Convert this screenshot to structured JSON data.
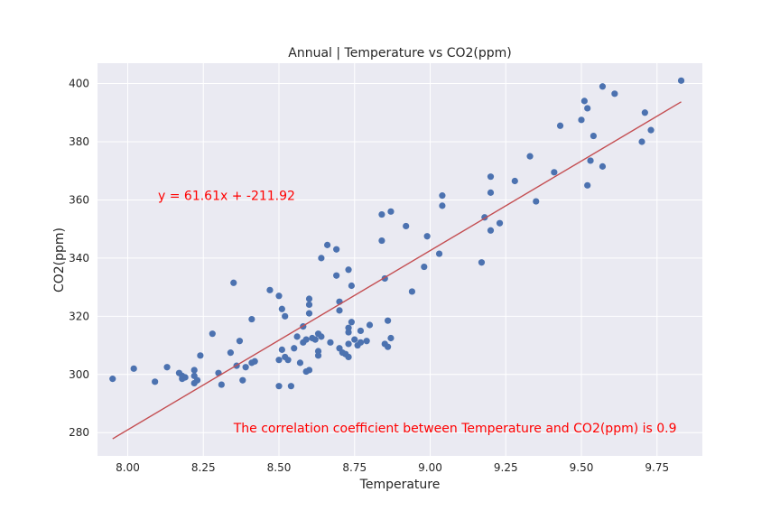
{
  "chart_data": {
    "type": "scatter",
    "title": "Annual | Temperature vs CO2(ppm)",
    "xlabel": "Temperature",
    "ylabel": "CO2(ppm)",
    "xlim": [
      7.9,
      9.9
    ],
    "ylim": [
      272,
      407
    ],
    "xticks": [
      8.0,
      8.25,
      8.5,
      8.75,
      9.0,
      9.25,
      9.5,
      9.75
    ],
    "xtick_labels": [
      "8.00",
      "8.25",
      "8.50",
      "8.75",
      "9.00",
      "9.25",
      "9.50",
      "9.75"
    ],
    "yticks": [
      280,
      300,
      320,
      340,
      360,
      380,
      400
    ],
    "ytick_labels": [
      "280",
      "300",
      "320",
      "340",
      "360",
      "380",
      "400"
    ],
    "grid": true,
    "point_color": "#4c72b0",
    "line_color": "#c44e52",
    "annotation_color": "#ff0000",
    "background_color": "#eaeaf2",
    "regression": {
      "slope": 61.61,
      "intercept": -211.92,
      "x_range": [
        7.95,
        9.83
      ],
      "equation_text": "y = 61.61x + -211.92",
      "equation_pos": [
        8.1,
        360
      ]
    },
    "correlation_text": "The correlation coefficient between Temperature and CO2(ppm) is 0.9",
    "correlation_pos": [
      8.35,
      280
    ],
    "points": [
      {
        "x": 7.95,
        "y": 298.5
      },
      {
        "x": 8.02,
        "y": 302
      },
      {
        "x": 8.09,
        "y": 297.5
      },
      {
        "x": 8.13,
        "y": 302.5
      },
      {
        "x": 8.17,
        "y": 300.5
      },
      {
        "x": 8.18,
        "y": 299.5
      },
      {
        "x": 8.19,
        "y": 299
      },
      {
        "x": 8.18,
        "y": 298.5
      },
      {
        "x": 8.22,
        "y": 301.5
      },
      {
        "x": 8.22,
        "y": 299.5
      },
      {
        "x": 8.22,
        "y": 297
      },
      {
        "x": 8.23,
        "y": 298
      },
      {
        "x": 8.24,
        "y": 306.5
      },
      {
        "x": 8.28,
        "y": 314
      },
      {
        "x": 8.3,
        "y": 300.5
      },
      {
        "x": 8.31,
        "y": 296.5
      },
      {
        "x": 8.34,
        "y": 307.5
      },
      {
        "x": 8.35,
        "y": 331.5
      },
      {
        "x": 8.36,
        "y": 303
      },
      {
        "x": 8.37,
        "y": 311.5
      },
      {
        "x": 8.38,
        "y": 298
      },
      {
        "x": 8.39,
        "y": 302.5
      },
      {
        "x": 8.41,
        "y": 304
      },
      {
        "x": 8.42,
        "y": 304.5
      },
      {
        "x": 8.41,
        "y": 319
      },
      {
        "x": 8.47,
        "y": 329
      },
      {
        "x": 8.5,
        "y": 327
      },
      {
        "x": 8.5,
        "y": 305
      },
      {
        "x": 8.5,
        "y": 296
      },
      {
        "x": 8.51,
        "y": 322.5
      },
      {
        "x": 8.51,
        "y": 308.5
      },
      {
        "x": 8.52,
        "y": 306
      },
      {
        "x": 8.52,
        "y": 320
      },
      {
        "x": 8.53,
        "y": 305
      },
      {
        "x": 8.54,
        "y": 296
      },
      {
        "x": 8.55,
        "y": 309
      },
      {
        "x": 8.56,
        "y": 313
      },
      {
        "x": 8.57,
        "y": 304
      },
      {
        "x": 8.58,
        "y": 311
      },
      {
        "x": 8.58,
        "y": 316.5
      },
      {
        "x": 8.59,
        "y": 312
      },
      {
        "x": 8.59,
        "y": 301
      },
      {
        "x": 8.6,
        "y": 301.5
      },
      {
        "x": 8.6,
        "y": 321
      },
      {
        "x": 8.6,
        "y": 324
      },
      {
        "x": 8.6,
        "y": 326
      },
      {
        "x": 8.61,
        "y": 312.5
      },
      {
        "x": 8.62,
        "y": 312
      },
      {
        "x": 8.63,
        "y": 314
      },
      {
        "x": 8.63,
        "y": 308
      },
      {
        "x": 8.63,
        "y": 306.5
      },
      {
        "x": 8.64,
        "y": 313
      },
      {
        "x": 8.64,
        "y": 340
      },
      {
        "x": 8.66,
        "y": 344.5
      },
      {
        "x": 8.67,
        "y": 311
      },
      {
        "x": 8.69,
        "y": 343
      },
      {
        "x": 8.69,
        "y": 334
      },
      {
        "x": 8.7,
        "y": 325
      },
      {
        "x": 8.7,
        "y": 322
      },
      {
        "x": 8.7,
        "y": 309
      },
      {
        "x": 8.71,
        "y": 307.5
      },
      {
        "x": 8.72,
        "y": 307
      },
      {
        "x": 8.73,
        "y": 306
      },
      {
        "x": 8.73,
        "y": 310.5
      },
      {
        "x": 8.73,
        "y": 314.5
      },
      {
        "x": 8.73,
        "y": 316
      },
      {
        "x": 8.73,
        "y": 336
      },
      {
        "x": 8.74,
        "y": 330.5
      },
      {
        "x": 8.74,
        "y": 318
      },
      {
        "x": 8.75,
        "y": 312
      },
      {
        "x": 8.76,
        "y": 310
      },
      {
        "x": 8.77,
        "y": 311
      },
      {
        "x": 8.77,
        "y": 315
      },
      {
        "x": 8.79,
        "y": 311.5
      },
      {
        "x": 8.8,
        "y": 317
      },
      {
        "x": 8.84,
        "y": 346
      },
      {
        "x": 8.84,
        "y": 355
      },
      {
        "x": 8.85,
        "y": 310.5
      },
      {
        "x": 8.85,
        "y": 333
      },
      {
        "x": 8.86,
        "y": 318.5
      },
      {
        "x": 8.86,
        "y": 309.5
      },
      {
        "x": 8.87,
        "y": 356
      },
      {
        "x": 8.87,
        "y": 312.5
      },
      {
        "x": 8.92,
        "y": 351
      },
      {
        "x": 8.94,
        "y": 328.5
      },
      {
        "x": 8.98,
        "y": 337
      },
      {
        "x": 8.99,
        "y": 347.5
      },
      {
        "x": 9.03,
        "y": 341.5
      },
      {
        "x": 9.04,
        "y": 358
      },
      {
        "x": 9.04,
        "y": 361.5
      },
      {
        "x": 9.17,
        "y": 338.5
      },
      {
        "x": 9.18,
        "y": 354
      },
      {
        "x": 9.2,
        "y": 349.5
      },
      {
        "x": 9.2,
        "y": 362.5
      },
      {
        "x": 9.2,
        "y": 368
      },
      {
        "x": 9.23,
        "y": 352
      },
      {
        "x": 9.28,
        "y": 366.5
      },
      {
        "x": 9.33,
        "y": 375
      },
      {
        "x": 9.35,
        "y": 359.5
      },
      {
        "x": 9.41,
        "y": 369.5
      },
      {
        "x": 9.43,
        "y": 385.5
      },
      {
        "x": 9.5,
        "y": 387.5
      },
      {
        "x": 9.51,
        "y": 394
      },
      {
        "x": 9.52,
        "y": 391.5
      },
      {
        "x": 9.52,
        "y": 365
      },
      {
        "x": 9.53,
        "y": 373.5
      },
      {
        "x": 9.54,
        "y": 382
      },
      {
        "x": 9.57,
        "y": 371.5
      },
      {
        "x": 9.57,
        "y": 399
      },
      {
        "x": 9.61,
        "y": 396.5
      },
      {
        "x": 9.7,
        "y": 380
      },
      {
        "x": 9.71,
        "y": 390
      },
      {
        "x": 9.73,
        "y": 384
      },
      {
        "x": 9.83,
        "y": 401
      }
    ]
  }
}
